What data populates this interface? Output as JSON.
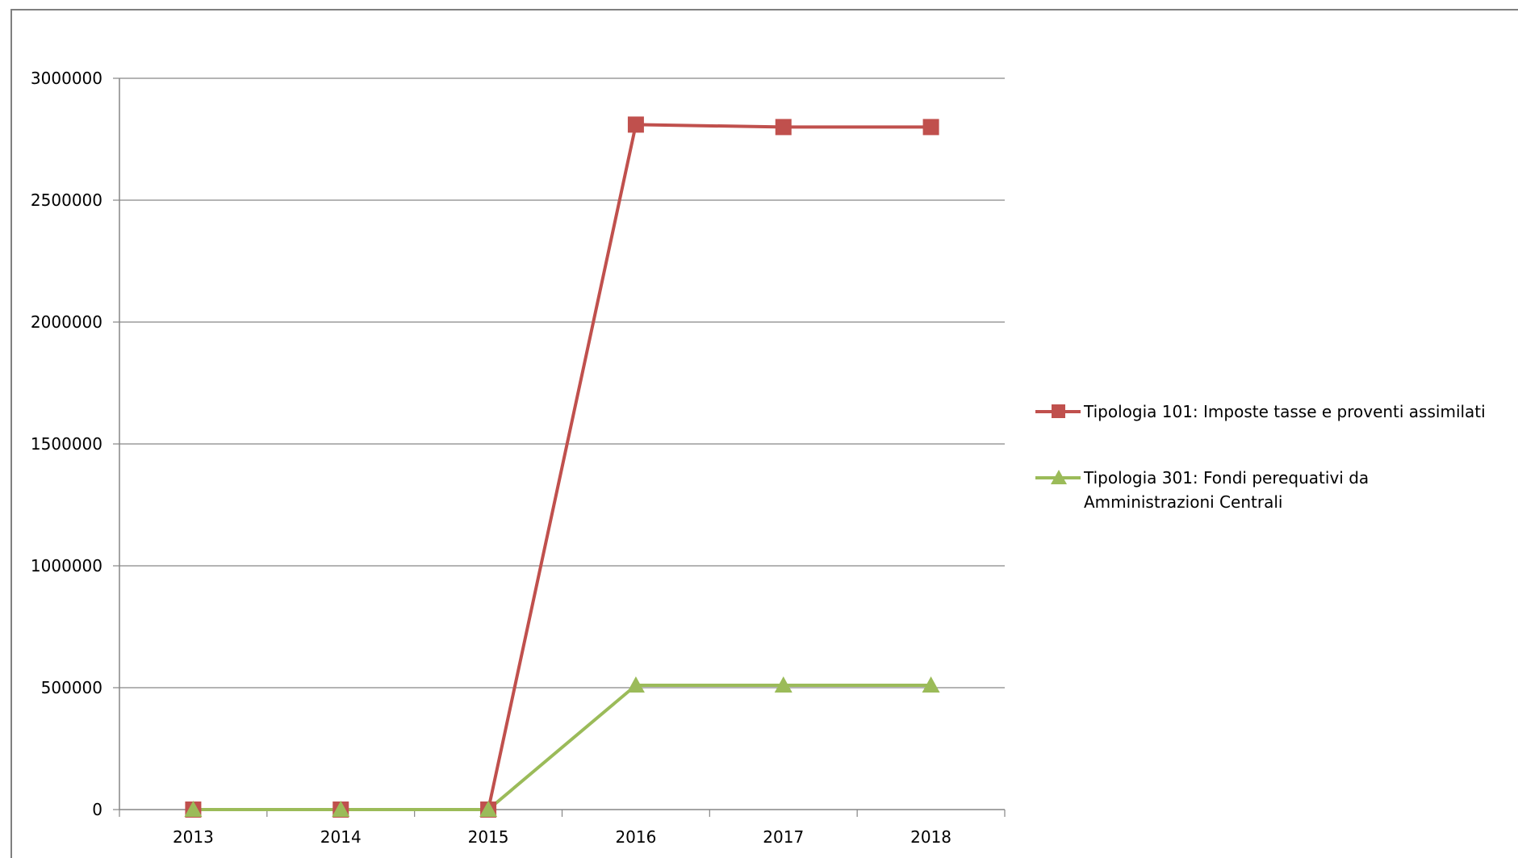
{
  "chart_data": {
    "type": "line",
    "categories": [
      "2013",
      "2014",
      "2015",
      "2016",
      "2017",
      "2018"
    ],
    "ylim": [
      0,
      3000000
    ],
    "yticks": [
      "0",
      "500000",
      "1000000",
      "1500000",
      "2000000",
      "2500000",
      "3000000"
    ],
    "grid": true,
    "legend_position": "right",
    "series": [
      {
        "name": "Tipologia 101: Imposte tasse e proventi assimilati",
        "color": "#c0504d",
        "marker": "square",
        "values": [
          0,
          0,
          0,
          2810000,
          2800000,
          2800000
        ]
      },
      {
        "name": "Tipologia 301: Fondi perequativi da Amministrazioni Centrali",
        "color": "#9bbb59",
        "marker": "triangle",
        "values": [
          0,
          0,
          0,
          510000,
          510000,
          510000
        ]
      }
    ]
  }
}
